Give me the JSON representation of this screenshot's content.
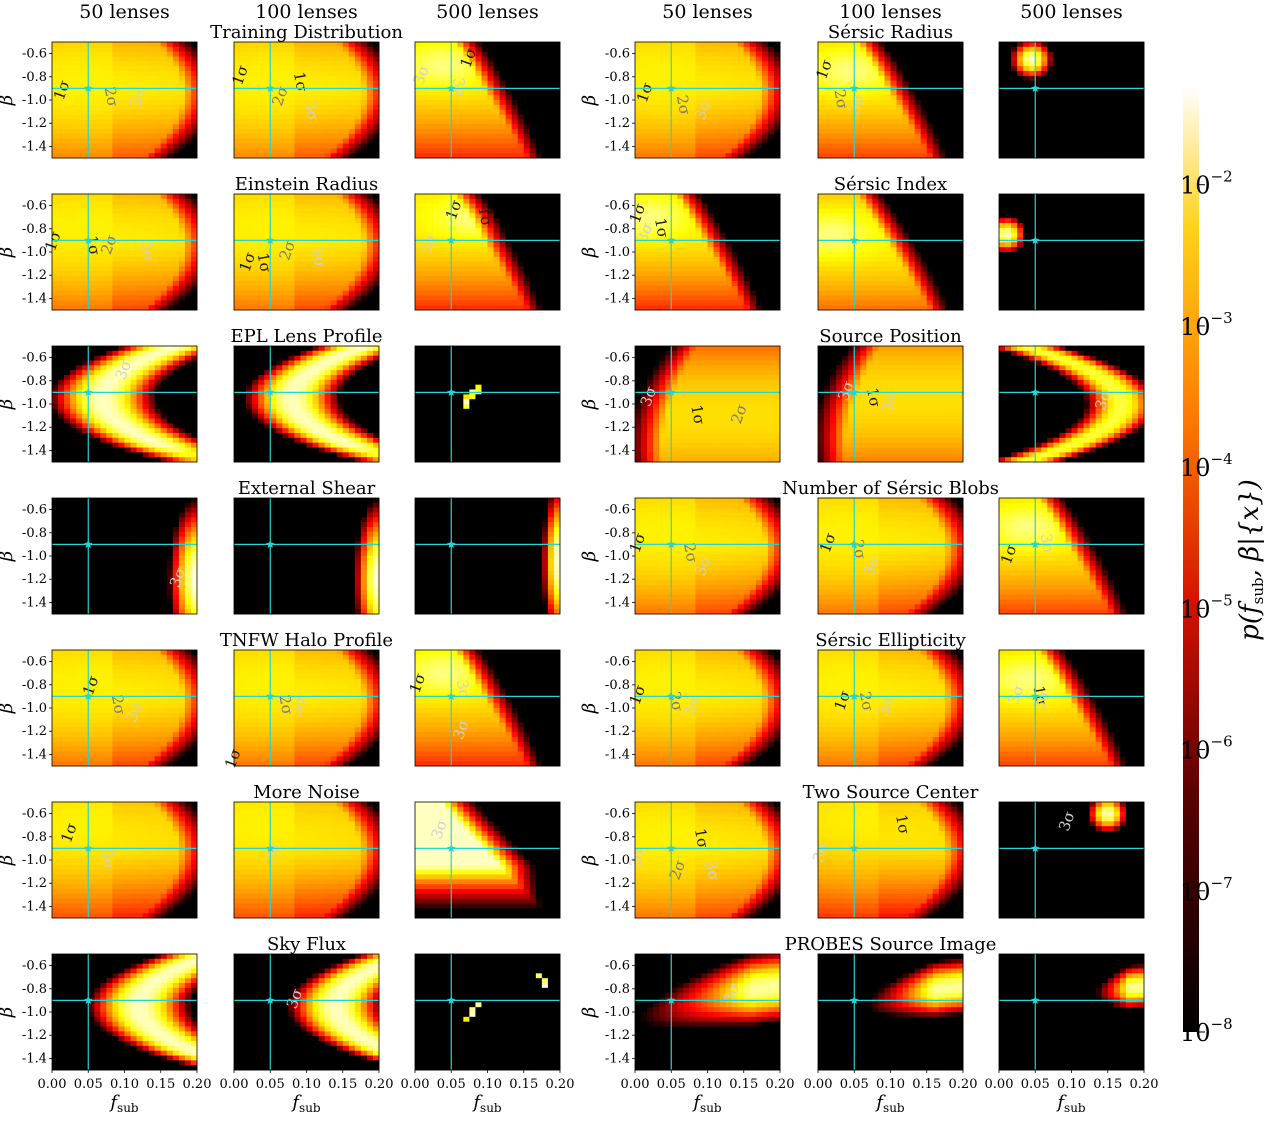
{
  "figure": {
    "column_headers": [
      "50 lenses",
      "100 lenses",
      "500 lenses",
      "50 lenses",
      "100 lenses",
      "500 lenses"
    ],
    "colormap": "hot",
    "truth_marker": {
      "f_sub": 0.05,
      "beta": -0.9,
      "color": "#20d6d6",
      "symbol": "star"
    },
    "contour_levels": [
      "1σ",
      "2σ",
      "3σ"
    ],
    "colorbar": {
      "label_p": "p",
      "label_args": "(f",
      "label_sub": "sub",
      "label_rest": ", β|{x})",
      "scale": "log",
      "range": [
        1e-08,
        0.05
      ],
      "ticks": [
        {
          "base": "10",
          "exp": "−2"
        },
        {
          "base": "10",
          "exp": "−3"
        },
        {
          "base": "10",
          "exp": "−4"
        },
        {
          "base": "10",
          "exp": "−5"
        },
        {
          "base": "10",
          "exp": "−6"
        },
        {
          "base": "10",
          "exp": "−7"
        },
        {
          "base": "10",
          "exp": "−8"
        }
      ]
    }
  },
  "chart_data": {
    "type": "heatmap",
    "x_axis": {
      "label": "f",
      "label_sub": "sub",
      "range": [
        0.0,
        0.2
      ],
      "ticks": [
        "0.00",
        "0.05",
        "0.10",
        "0.15",
        "0.20"
      ]
    },
    "y_axis": {
      "label": "β",
      "range": [
        -1.5,
        -0.5
      ],
      "ticks": [
        "-0.6",
        "-0.8",
        "-1.0",
        "-1.2",
        "-1.4"
      ]
    },
    "panel_rows": [
      {
        "left_title": "Training Distribution",
        "right_title": "Sérsic Radius"
      },
      {
        "left_title": "Einstein Radius",
        "right_title": "Sérsic Index"
      },
      {
        "left_title": "EPL Lens Profile",
        "right_title": "Source Position"
      },
      {
        "left_title": "External Shear",
        "right_title": "Number of Sérsic Blobs"
      },
      {
        "left_title": "TNFW Halo Profile",
        "right_title": "Sérsic Ellipticity"
      },
      {
        "left_title": "More Noise",
        "right_title": "Two Source Center"
      },
      {
        "left_title": "Sky Flux",
        "right_title": "PROBES Source Image"
      }
    ],
    "panels": [
      {
        "row": 0,
        "col": 0,
        "kind": "broad",
        "mode": [
          0.06,
          -0.85
        ],
        "spread": 1.0,
        "labels": [
          {
            "t": "1σ",
            "x": 0.02,
            "y": -0.93
          },
          {
            "t": "2σ",
            "x": 0.075,
            "y": -0.98
          },
          {
            "t": "3σ",
            "x": 0.125,
            "y": -1.0
          }
        ]
      },
      {
        "row": 0,
        "col": 1,
        "kind": "broad",
        "mode": [
          0.06,
          -0.85
        ],
        "spread": 0.95,
        "labels": [
          {
            "t": "1σ",
            "x": 0.015,
            "y": -0.8
          },
          {
            "t": "1σ",
            "x": 0.085,
            "y": -0.85
          },
          {
            "t": "2σ",
            "x": 0.07,
            "y": -0.98
          },
          {
            "t": "3σ",
            "x": 0.1,
            "y": -1.1
          }
        ]
      },
      {
        "row": 0,
        "col": 2,
        "kind": "band",
        "mode": [
          0.04,
          -0.7
        ],
        "spread": 0.6,
        "labels": [
          {
            "t": "3σ",
            "x": 0.015,
            "y": -0.8
          },
          {
            "t": "3σ",
            "x": 0.055,
            "y": -0.9
          },
          {
            "t": "1σ",
            "x": 0.08,
            "y": -0.65
          }
        ]
      },
      {
        "row": 0,
        "col": 3,
        "kind": "broad",
        "mode": [
          0.04,
          -0.8
        ],
        "spread": 0.85,
        "labels": [
          {
            "t": "1σ",
            "x": 0.02,
            "y": -0.95
          },
          {
            "t": "2σ",
            "x": 0.06,
            "y": -1.05
          },
          {
            "t": "3σ",
            "x": 0.1,
            "y": -1.1
          }
        ]
      },
      {
        "row": 0,
        "col": 4,
        "kind": "band",
        "mode": [
          0.045,
          -0.75
        ],
        "spread": 0.75,
        "labels": [
          {
            "t": "1σ",
            "x": 0.015,
            "y": -0.75
          },
          {
            "t": "2σ",
            "x": 0.025,
            "y": -1.0
          },
          {
            "t": "3σ",
            "x": 0.06,
            "y": -1.05
          }
        ]
      },
      {
        "row": 0,
        "col": 5,
        "kind": "spot",
        "mode": [
          0.045,
          -0.65
        ],
        "spread": 0.4,
        "labels": []
      },
      {
        "row": 1,
        "col": 0,
        "kind": "broad",
        "mode": [
          0.06,
          -0.8
        ],
        "spread": 1.0,
        "labels": [
          {
            "t": "1σ",
            "x": 0.008,
            "y": -0.92
          },
          {
            "t": "1σ",
            "x": 0.05,
            "y": -0.95
          },
          {
            "t": "2σ",
            "x": 0.085,
            "y": -0.95
          },
          {
            "t": "3σ",
            "x": 0.125,
            "y": -1.0
          }
        ]
      },
      {
        "row": 1,
        "col": 1,
        "kind": "broad",
        "mode": [
          0.07,
          -0.8
        ],
        "spread": 0.95,
        "labels": [
          {
            "t": "1σ",
            "x": 0.025,
            "y": -1.1
          },
          {
            "t": "1σ",
            "x": 0.035,
            "y": -1.1
          },
          {
            "t": "2σ",
            "x": 0.08,
            "y": -1.0
          },
          {
            "t": "3σ",
            "x": 0.11,
            "y": -1.05
          }
        ]
      },
      {
        "row": 1,
        "col": 2,
        "kind": "band",
        "mode": [
          0.08,
          -0.7
        ],
        "spread": 0.7,
        "labels": [
          {
            "t": "1σ",
            "x": 0.06,
            "y": -0.65
          },
          {
            "t": "1σ",
            "x": 0.09,
            "y": -0.7
          },
          {
            "t": "3σ",
            "x": 0.025,
            "y": -0.95
          }
        ]
      },
      {
        "row": 1,
        "col": 3,
        "kind": "band",
        "mode": [
          0.02,
          -0.7
        ],
        "spread": 0.6,
        "labels": [
          {
            "t": "1σ",
            "x": 0.01,
            "y": -0.68
          },
          {
            "t": "1σ",
            "x": 0.03,
            "y": -0.8
          },
          {
            "t": "3σ",
            "x": 0.02,
            "y": -0.85
          }
        ]
      },
      {
        "row": 1,
        "col": 4,
        "kind": "band",
        "mode": [
          0.02,
          -0.85
        ],
        "spread": 0.55,
        "labels": []
      },
      {
        "row": 1,
        "col": 5,
        "kind": "spot",
        "mode": [
          0.01,
          -0.85
        ],
        "spread": 0.35,
        "labels": []
      },
      {
        "row": 2,
        "col": 0,
        "kind": "arc",
        "mode": [
          0.07,
          -0.95
        ],
        "spread": 0.5,
        "labels": [
          {
            "t": "3σ",
            "x": 0.105,
            "y": -0.72
          }
        ]
      },
      {
        "row": 2,
        "col": 1,
        "kind": "arc",
        "mode": [
          0.08,
          -0.85
        ],
        "spread": 0.35,
        "labels": []
      },
      {
        "row": 2,
        "col": 2,
        "kind": "points",
        "mode": [
          0.08,
          -0.9
        ],
        "spread": 0.2,
        "labels": []
      },
      {
        "row": 2,
        "col": 3,
        "kind": "broad_right",
        "mode": [
          0.13,
          -1.1
        ],
        "spread": 0.9,
        "labels": [
          {
            "t": "3σ",
            "x": 0.025,
            "y": -0.95
          },
          {
            "t": "1σ",
            "x": 0.08,
            "y": -1.1
          },
          {
            "t": "2σ",
            "x": 0.15,
            "y": -1.1
          }
        ]
      },
      {
        "row": 2,
        "col": 4,
        "kind": "broad_right",
        "mode": [
          0.16,
          -0.95
        ],
        "spread": 0.8,
        "labels": [
          {
            "t": "3σ",
            "x": 0.045,
            "y": -0.9
          },
          {
            "t": "1σ",
            "x": 0.07,
            "y": -0.95
          },
          {
            "t": "3σ",
            "x": 0.105,
            "y": -1.0
          }
        ]
      },
      {
        "row": 2,
        "col": 5,
        "kind": "arc_right",
        "mode": [
          0.18,
          -1.0
        ],
        "spread": 0.4,
        "labels": [
          {
            "t": "3σ",
            "x": 0.15,
            "y": -0.98
          }
        ]
      },
      {
        "row": 3,
        "col": 0,
        "kind": "edge",
        "mode": [
          0.2,
          -1.2
        ],
        "spread": 0.3,
        "labels": [
          {
            "t": "3σ",
            "x": 0.18,
            "y": -1.2
          }
        ]
      },
      {
        "row": 3,
        "col": 1,
        "kind": "edge",
        "mode": [
          0.2,
          -1.2
        ],
        "spread": 0.25,
        "labels": []
      },
      {
        "row": 3,
        "col": 2,
        "kind": "edge",
        "mode": [
          0.2,
          -1.05
        ],
        "spread": 0.15,
        "labels": []
      },
      {
        "row": 3,
        "col": 3,
        "kind": "broad",
        "mode": [
          0.05,
          -0.8
        ],
        "spread": 1.0,
        "labels": [
          {
            "t": "1σ",
            "x": 0.01,
            "y": -0.9
          },
          {
            "t": "2σ",
            "x": 0.07,
            "y": -0.98
          },
          {
            "t": "3σ",
            "x": 0.1,
            "y": -1.1
          }
        ]
      },
      {
        "row": 3,
        "col": 4,
        "kind": "broad",
        "mode": [
          0.05,
          -0.8
        ],
        "spread": 0.9,
        "labels": [
          {
            "t": "1σ",
            "x": 0.02,
            "y": -0.9
          },
          {
            "t": "2σ",
            "x": 0.05,
            "y": -0.95
          },
          {
            "t": "3σ",
            "x": 0.08,
            "y": -1.1
          }
        ]
      },
      {
        "row": 3,
        "col": 5,
        "kind": "band",
        "mode": [
          0.04,
          -0.75
        ],
        "spread": 0.6,
        "labels": [
          {
            "t": "1σ",
            "x": 0.02,
            "y": -1.0
          },
          {
            "t": "3σ",
            "x": 0.06,
            "y": -0.9
          }
        ]
      },
      {
        "row": 4,
        "col": 0,
        "kind": "broad",
        "mode": [
          0.06,
          -0.8
        ],
        "spread": 1.0,
        "labels": [
          {
            "t": "1σ",
            "x": 0.06,
            "y": -0.82
          },
          {
            "t": "2σ",
            "x": 0.085,
            "y": -0.98
          },
          {
            "t": "3σ",
            "x": 0.12,
            "y": -1.05
          }
        ]
      },
      {
        "row": 4,
        "col": 1,
        "kind": "broad",
        "mode": [
          0.06,
          -0.8
        ],
        "spread": 0.95,
        "labels": [
          {
            "t": "1σ",
            "x": 0.005,
            "y": -1.45
          },
          {
            "t": "2σ",
            "x": 0.065,
            "y": -0.98
          },
          {
            "t": "3σ",
            "x": 0.095,
            "y": -1.0
          }
        ]
      },
      {
        "row": 4,
        "col": 2,
        "kind": "band",
        "mode": [
          0.04,
          -0.7
        ],
        "spread": 0.65,
        "labels": [
          {
            "t": "1σ",
            "x": 0.01,
            "y": -0.8
          },
          {
            "t": "3σ",
            "x": 0.06,
            "y": -0.85
          },
          {
            "t": "3σ",
            "x": 0.07,
            "y": -1.2
          }
        ]
      },
      {
        "row": 4,
        "col": 3,
        "kind": "broad",
        "mode": [
          0.05,
          -0.8
        ],
        "spread": 0.9,
        "labels": [
          {
            "t": "1σ",
            "x": 0.01,
            "y": -0.9
          },
          {
            "t": "2σ",
            "x": 0.05,
            "y": -0.95
          },
          {
            "t": "3σ",
            "x": 0.085,
            "y": -1.0
          }
        ]
      },
      {
        "row": 4,
        "col": 4,
        "kind": "broad",
        "mode": [
          0.05,
          -0.8
        ],
        "spread": 0.9,
        "labels": [
          {
            "t": "1σ",
            "x": 0.04,
            "y": -0.95
          },
          {
            "t": "2σ",
            "x": 0.06,
            "y": -0.95
          },
          {
            "t": "3σ",
            "x": 0.1,
            "y": -1.0
          }
        ]
      },
      {
        "row": 4,
        "col": 5,
        "kind": "band",
        "mode": [
          0.04,
          -0.75
        ],
        "spread": 0.6,
        "labels": [
          {
            "t": "3σ",
            "x": 0.03,
            "y": -0.9
          },
          {
            "t": "1σ",
            "x": 0.05,
            "y": -0.9
          },
          {
            "t": "3σ",
            "x": 0.065,
            "y": -0.95
          }
        ]
      },
      {
        "row": 5,
        "col": 0,
        "kind": "broad",
        "mode": [
          0.05,
          -0.7
        ],
        "spread": 0.9,
        "labels": [
          {
            "t": "1σ",
            "x": 0.03,
            "y": -0.78
          },
          {
            "t": "3σ",
            "x": 0.07,
            "y": -1.0
          }
        ]
      },
      {
        "row": 5,
        "col": 1,
        "kind": "broad",
        "mode": [
          0.05,
          -0.7
        ],
        "spread": 0.9,
        "labels": [
          {
            "t": "3σ",
            "x": 0.06,
            "y": -0.95
          }
        ]
      },
      {
        "row": 5,
        "col": 2,
        "kind": "corner",
        "mode": [
          0.03,
          -0.6
        ],
        "spread": 0.5,
        "labels": [
          {
            "t": "3σ",
            "x": 0.04,
            "y": -0.75
          }
        ]
      },
      {
        "row": 5,
        "col": 3,
        "kind": "broad",
        "mode": [
          0.05,
          -0.8
        ],
        "spread": 1.0,
        "labels": [
          {
            "t": "3σ",
            "x": 0.01,
            "y": -1.0
          },
          {
            "t": "1σ",
            "x": 0.085,
            "y": -0.82
          },
          {
            "t": "2σ",
            "x": 0.065,
            "y": -1.1
          },
          {
            "t": "3σ",
            "x": 0.1,
            "y": -1.1
          }
        ]
      },
      {
        "row": 5,
        "col": 4,
        "kind": "broad",
        "mode": [
          0.12,
          -0.65
        ],
        "spread": 0.9,
        "labels": [
          {
            "t": "3σ",
            "x": 0.01,
            "y": -0.95
          },
          {
            "t": "1σ",
            "x": 0.11,
            "y": -0.7
          }
        ]
      },
      {
        "row": 5,
        "col": 5,
        "kind": "spot",
        "mode": [
          0.15,
          -0.6
        ],
        "spread": 0.35,
        "labels": [
          {
            "t": "3σ",
            "x": 0.1,
            "y": -0.68
          }
        ]
      },
      {
        "row": 6,
        "col": 0,
        "kind": "arc",
        "mode": [
          0.12,
          -0.75
        ],
        "spread": 0.45,
        "labels": []
      },
      {
        "row": 6,
        "col": 1,
        "kind": "arc",
        "mode": [
          0.14,
          -0.75
        ],
        "spread": 0.35,
        "labels": [
          {
            "t": "3σ",
            "x": 0.09,
            "y": -0.9
          }
        ]
      },
      {
        "row": 6,
        "col": 2,
        "kind": "points",
        "mode": [
          0.12,
          -0.95
        ],
        "spread": 0.2,
        "labels": []
      },
      {
        "row": 6,
        "col": 3,
        "kind": "lower",
        "mode": [
          0.18,
          -0.75
        ],
        "spread": 0.5,
        "labels": [
          {
            "t": "3σ",
            "x": 0.14,
            "y": -0.85
          }
        ]
      },
      {
        "row": 6,
        "col": 4,
        "kind": "lower",
        "mode": [
          0.18,
          -0.78
        ],
        "spread": 0.3,
        "labels": []
      },
      {
        "row": 6,
        "col": 5,
        "kind": "lower",
        "mode": [
          0.2,
          -0.78
        ],
        "spread": 0.15,
        "labels": []
      }
    ]
  }
}
